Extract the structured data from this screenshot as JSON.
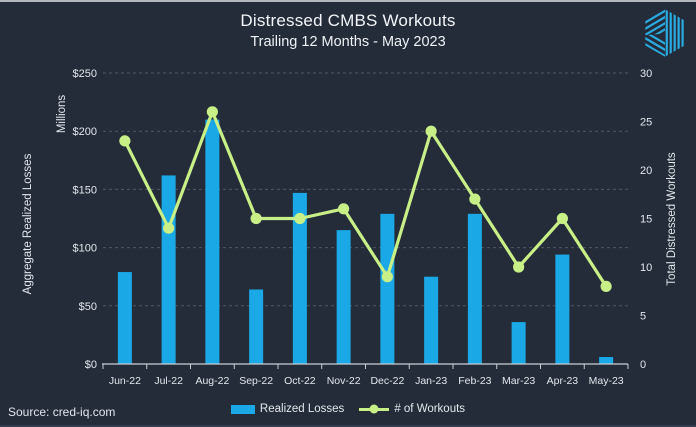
{
  "header": {
    "title": "Distressed CMBS Workouts",
    "subtitle": "Trailing 12 Months - May 2023"
  },
  "source": {
    "label": "Source: cred-iq.com"
  },
  "legend": [
    {
      "label": "Realized Losses",
      "swatch": "bar"
    },
    {
      "label": "# of Workouts",
      "swatch": "line-marker"
    }
  ],
  "colors": {
    "background": "#242c3a",
    "bar": "#1aa8e6",
    "line": "#c9ef87",
    "grid": "#4f5664",
    "axis": "#c9ced5",
    "text": "#e3e7ed",
    "logo": "#2aabe2"
  },
  "chart_data": {
    "type": "bar",
    "subtype": "bar+line combo, dual axis",
    "title": "Distressed CMBS Workouts",
    "subtitle": "Trailing 12 Months - May 2023",
    "categories": [
      "Jun-22",
      "Jul-22",
      "Aug-22",
      "Sep-22",
      "Oct-22",
      "Nov-22",
      "Dec-22",
      "Jan-23",
      "Feb-23",
      "Mar-23",
      "Apr-23",
      "May-23"
    ],
    "series": [
      {
        "name": "Realized Losses",
        "type": "bar",
        "axis": "left",
        "values": [
          79,
          162,
          210,
          64,
          147,
          115,
          129,
          75,
          129,
          36,
          94,
          6
        ]
      },
      {
        "name": "# of Workouts",
        "type": "line",
        "axis": "right",
        "values": [
          23,
          14,
          26,
          15,
          15,
          16,
          9,
          24,
          17,
          10,
          15,
          8
        ]
      }
    ],
    "y_left": {
      "label": "Aggregate Realized Losses",
      "units_label": "Millions",
      "min": 0,
      "max": 250,
      "step": 50,
      "tick_prefix": "$"
    },
    "y_right": {
      "label": "Total Distressed Workouts",
      "min": 0,
      "max": 30,
      "step": 5,
      "tick_prefix": ""
    },
    "grid": "horizontal dashed, left-axis intervals",
    "legend_position": "bottom center"
  }
}
